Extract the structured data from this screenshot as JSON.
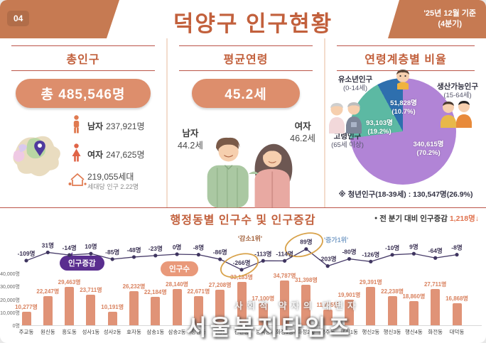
{
  "header": {
    "badge": "04",
    "title": "덕양구 인구현황",
    "date_line1": "'25년 12월 기준",
    "date_line2": "(4분기)"
  },
  "total_panel": {
    "title": "총인구",
    "badge": "총 485,546명",
    "male_label": "남자",
    "male_value": "237,921명",
    "female_label": "여자",
    "female_value": "247,625명",
    "household_value": "219,055세대",
    "household_sub": "세대당 인구 2.22명"
  },
  "age_panel": {
    "title": "평균연령",
    "badge": "45.2세",
    "male_label": "남자",
    "male_value": "44.2세",
    "female_label": "여자",
    "female_value": "46.2세"
  },
  "ratio_panel": {
    "title": "연령계층별 비율",
    "youth": {
      "label": "유소년인구",
      "range": "(0-14세)",
      "display": "51,828명",
      "percent": "(10.7%)"
    },
    "working": {
      "label": "생산가능인구",
      "range": "(15-64세)",
      "display": "340,615명",
      "percent": "(70.2%)"
    },
    "elderly": {
      "label": "고령인구",
      "range": "(65세 이상)",
      "display": "93,103명",
      "percent": "(19.2%)"
    },
    "note": "※ 청년인구(18-39세) : 130,547명(26.9%)"
  },
  "bottom": {
    "title": "행정동별 인구수 및 인구증감",
    "note_bullet": "●",
    "note_text": " 전 분기 대비 인구증감 ",
    "note_value": "1,218명↓",
    "legend_change": "인구증감",
    "legend_pop": "인구수"
  },
  "watermark": {
    "line1": "사회적 약자의 대변자",
    "line2": "서울복지타임즈"
  },
  "chart_data": [
    {
      "type": "pie",
      "title": "연령계층별 비율",
      "start_angle_deg": 10,
      "slices": [
        {
          "name": "생산가능인구",
          "age_range": "15-64세",
          "value": 340615,
          "percent": 70.2,
          "color": "#b184d6"
        },
        {
          "name": "고령인구",
          "age_range": "65세 이상",
          "value": 93103,
          "percent": 19.2,
          "color": "#5cb9a3"
        },
        {
          "name": "유소년인구",
          "age_range": "0-14세",
          "value": 51828,
          "percent": 10.7,
          "color": "#2e6fae"
        }
      ],
      "annotation": "※ 청년인구(18-39세) : 130,547명(26.9%)"
    },
    {
      "type": "bar+line",
      "title": "행정동별 인구수 및 인구증감",
      "categories": [
        "주교동",
        "원신동",
        "흥도동",
        "성사1동",
        "성사2동",
        "효자동",
        "삼송1동",
        "삼송2동",
        "창릉동",
        "고양동",
        "관산동",
        "능곡동",
        "화정1동",
        "화정2동",
        "행주동",
        "행신1동",
        "행신2동",
        "행신3동",
        "행신4동",
        "화전동",
        "대덕동"
      ],
      "series": [
        {
          "name": "인구수",
          "type": "bar",
          "color": "#e09377",
          "unit": "명",
          "values": [
            10277,
            22247,
            29463,
            23711,
            10191,
            26232,
            22184,
            28140,
            22671,
            27208,
            33183,
            17100,
            34787,
            31398,
            11785,
            19901,
            29391,
            22238,
            18860,
            27711,
            16868
          ]
        },
        {
          "name": "인구증감",
          "type": "line",
          "color": "#463a68",
          "unit": "명",
          "values": [
            -109,
            31,
            -14,
            10,
            -85,
            -48,
            -23,
            0,
            -8,
            -86,
            -266,
            -113,
            -114,
            89,
            -203,
            -80,
            -126,
            -10,
            9,
            -64,
            -8
          ]
        }
      ],
      "ylim_bar": [
        0,
        40000
      ],
      "y_ticks": [
        "0명",
        "10,000명",
        "20,000명",
        "30,000명",
        "40,000명"
      ],
      "annotations": [
        {
          "index": 10,
          "label": "'감소1위'",
          "color": "#a2603a"
        },
        {
          "index": 13,
          "label": "'증가1위'",
          "color": "#7ba0c8"
        }
      ]
    }
  ]
}
